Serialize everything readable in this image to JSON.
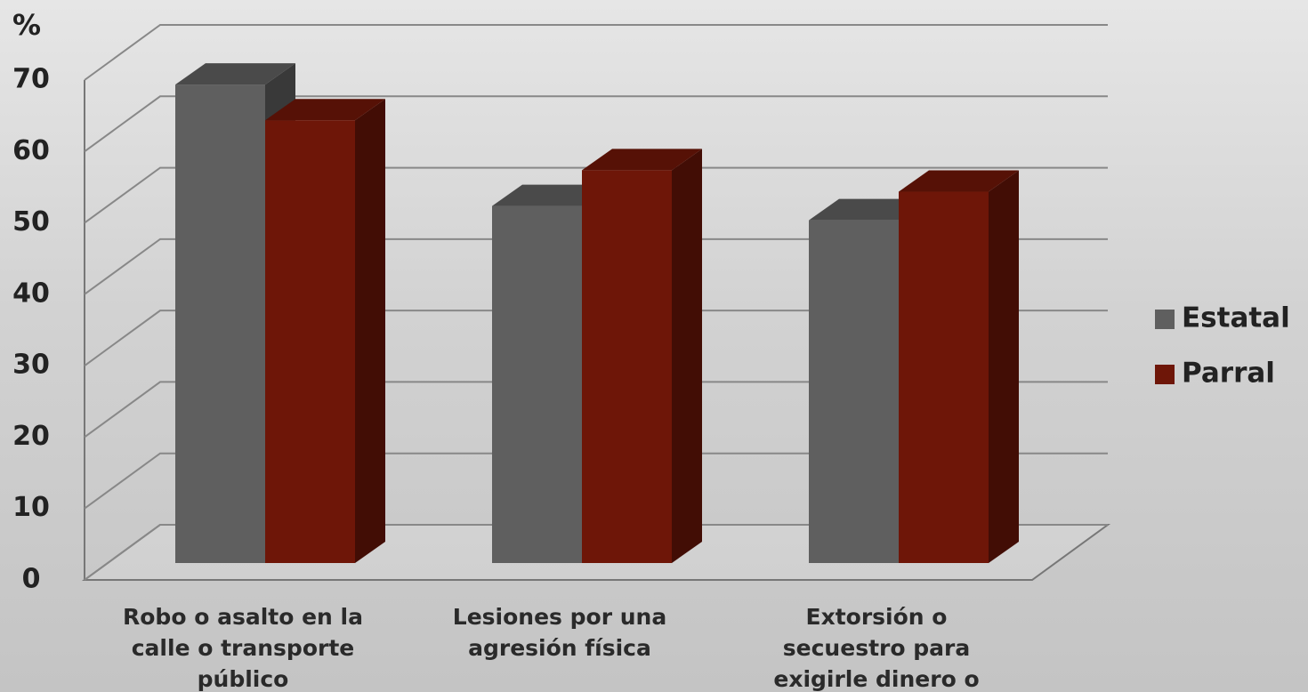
{
  "chart_data": {
    "type": "bar3d",
    "y_unit_label": "%",
    "categories": [
      "Robo o asalto en la calle o transporte público",
      "Lesiones por una agresión física",
      "Extorsión o secuestro para exigirle dinero o bienes"
    ],
    "series": [
      {
        "name": "Estatal",
        "color": "#5f5f5f",
        "values": [
          67,
          50,
          48
        ]
      },
      {
        "name": "Parral",
        "color": "#6e1608",
        "values": [
          62,
          55,
          52
        ]
      }
    ],
    "ylim": [
      0,
      70
    ],
    "yticks": [
      0,
      10,
      20,
      30,
      40,
      50,
      60,
      70
    ],
    "grid": true,
    "legend": "right"
  }
}
